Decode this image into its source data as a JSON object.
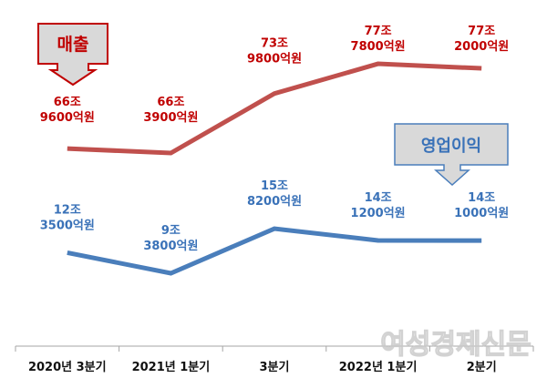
{
  "chart_data": {
    "type": "line",
    "categories": [
      "2020년 3분기",
      "2021년 1분기",
      "3분기",
      "2022년 1분기",
      "2분기"
    ],
    "units": "조원",
    "grid": false,
    "series": [
      {
        "name": "매출",
        "color": "#c0504d",
        "label_color": "#c00000",
        "values": [
          66.96,
          66.39,
          73.98,
          77.78,
          77.2
        ],
        "labels": [
          [
            "66조",
            "9600억원"
          ],
          [
            "66조",
            "3900억원"
          ],
          [
            "73조",
            "9800억원"
          ],
          [
            "77조",
            "7800억원"
          ],
          [
            "77조",
            "2000억원"
          ]
        ]
      },
      {
        "name": "영업이익",
        "color": "#4a7ebb",
        "label_color": "#3a72b8",
        "values": [
          12.35,
          9.38,
          15.82,
          14.12,
          14.1
        ],
        "labels": [
          [
            "12조",
            "3500억원"
          ],
          [
            "9조",
            "3800억원"
          ],
          [
            "15조",
            "8200억원"
          ],
          [
            "14조",
            "1200억원"
          ],
          [
            "14조",
            "1000억원"
          ]
        ]
      }
    ]
  },
  "watermark": "여성경제신문"
}
